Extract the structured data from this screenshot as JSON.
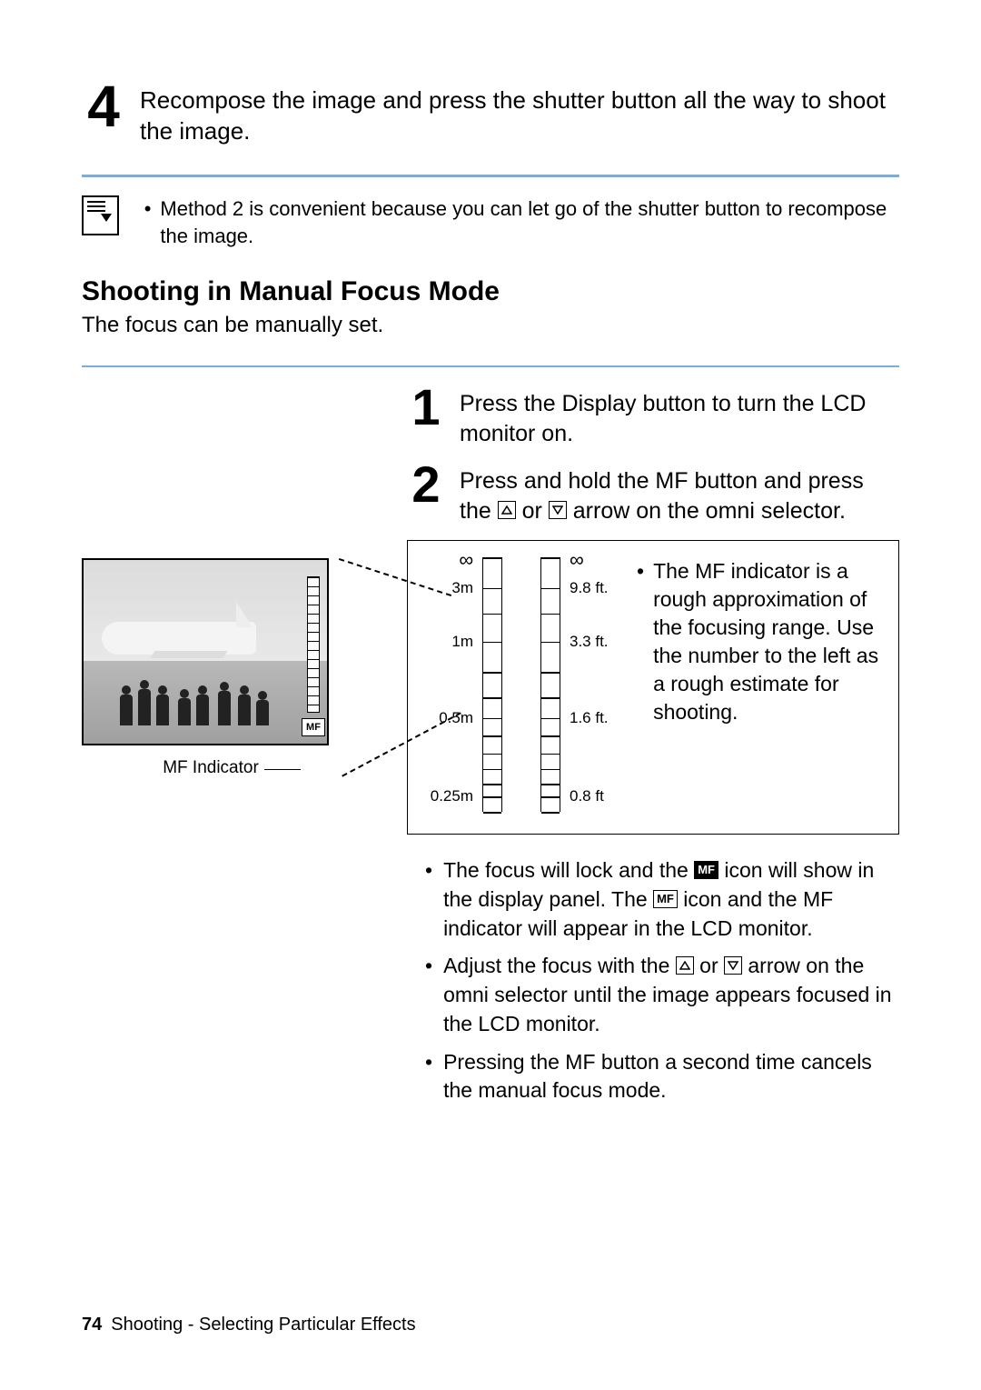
{
  "step4": {
    "num": "4",
    "text": "Recompose the image and press the shutter button all the way to shoot the image."
  },
  "note": {
    "text": "Method 2 is convenient because you can let go of the shutter button to recompose the image."
  },
  "section": {
    "heading": "Shooting in Manual Focus Mode",
    "intro": "The focus can be manually set."
  },
  "step1": {
    "num": "1",
    "text": "Press the Display button to turn the LCD monitor on."
  },
  "step2": {
    "num": "2",
    "pre": "Press and hold the MF button and press the ",
    "mid": " or ",
    "post": " arrow on the omni selector."
  },
  "lcd": {
    "mf": "MF",
    "indicator_label": "MF Indicator"
  },
  "scale": {
    "m_labels": [
      "∞",
      "3m",
      "1m",
      "0.5m",
      "0.25m"
    ],
    "ft_labels": [
      "∞",
      "9.8 ft.",
      "3.3 ft.",
      "1.6 ft.",
      "0.8 ft"
    ],
    "rung_pct": [
      0,
      12,
      22,
      33,
      45,
      55,
      63,
      70,
      77,
      83,
      89,
      94,
      100
    ],
    "label_pos_pct": [
      0,
      12,
      33,
      63,
      94
    ],
    "desc": "The MF indicator is a rough approximation of the focusing range. Use the number to the left as a rough estimate for shooting."
  },
  "bullets": {
    "b1a": "The focus will lock and the ",
    "b1b": " icon will show in the display panel. The ",
    "b1c": " icon and the MF indicator will appear in the LCD monitor.",
    "b2a": "Adjust the focus with the ",
    "b2b": " or ",
    "b2c": " arrow on the omni selector until the image appears focused in the LCD monitor.",
    "b3": "Pressing the MF button a second time cancels the manual focus mode."
  },
  "footer": {
    "page": "74",
    "text": "Shooting - Selecting Particular Effects"
  },
  "colors": {
    "rule": "#7aaed8"
  }
}
